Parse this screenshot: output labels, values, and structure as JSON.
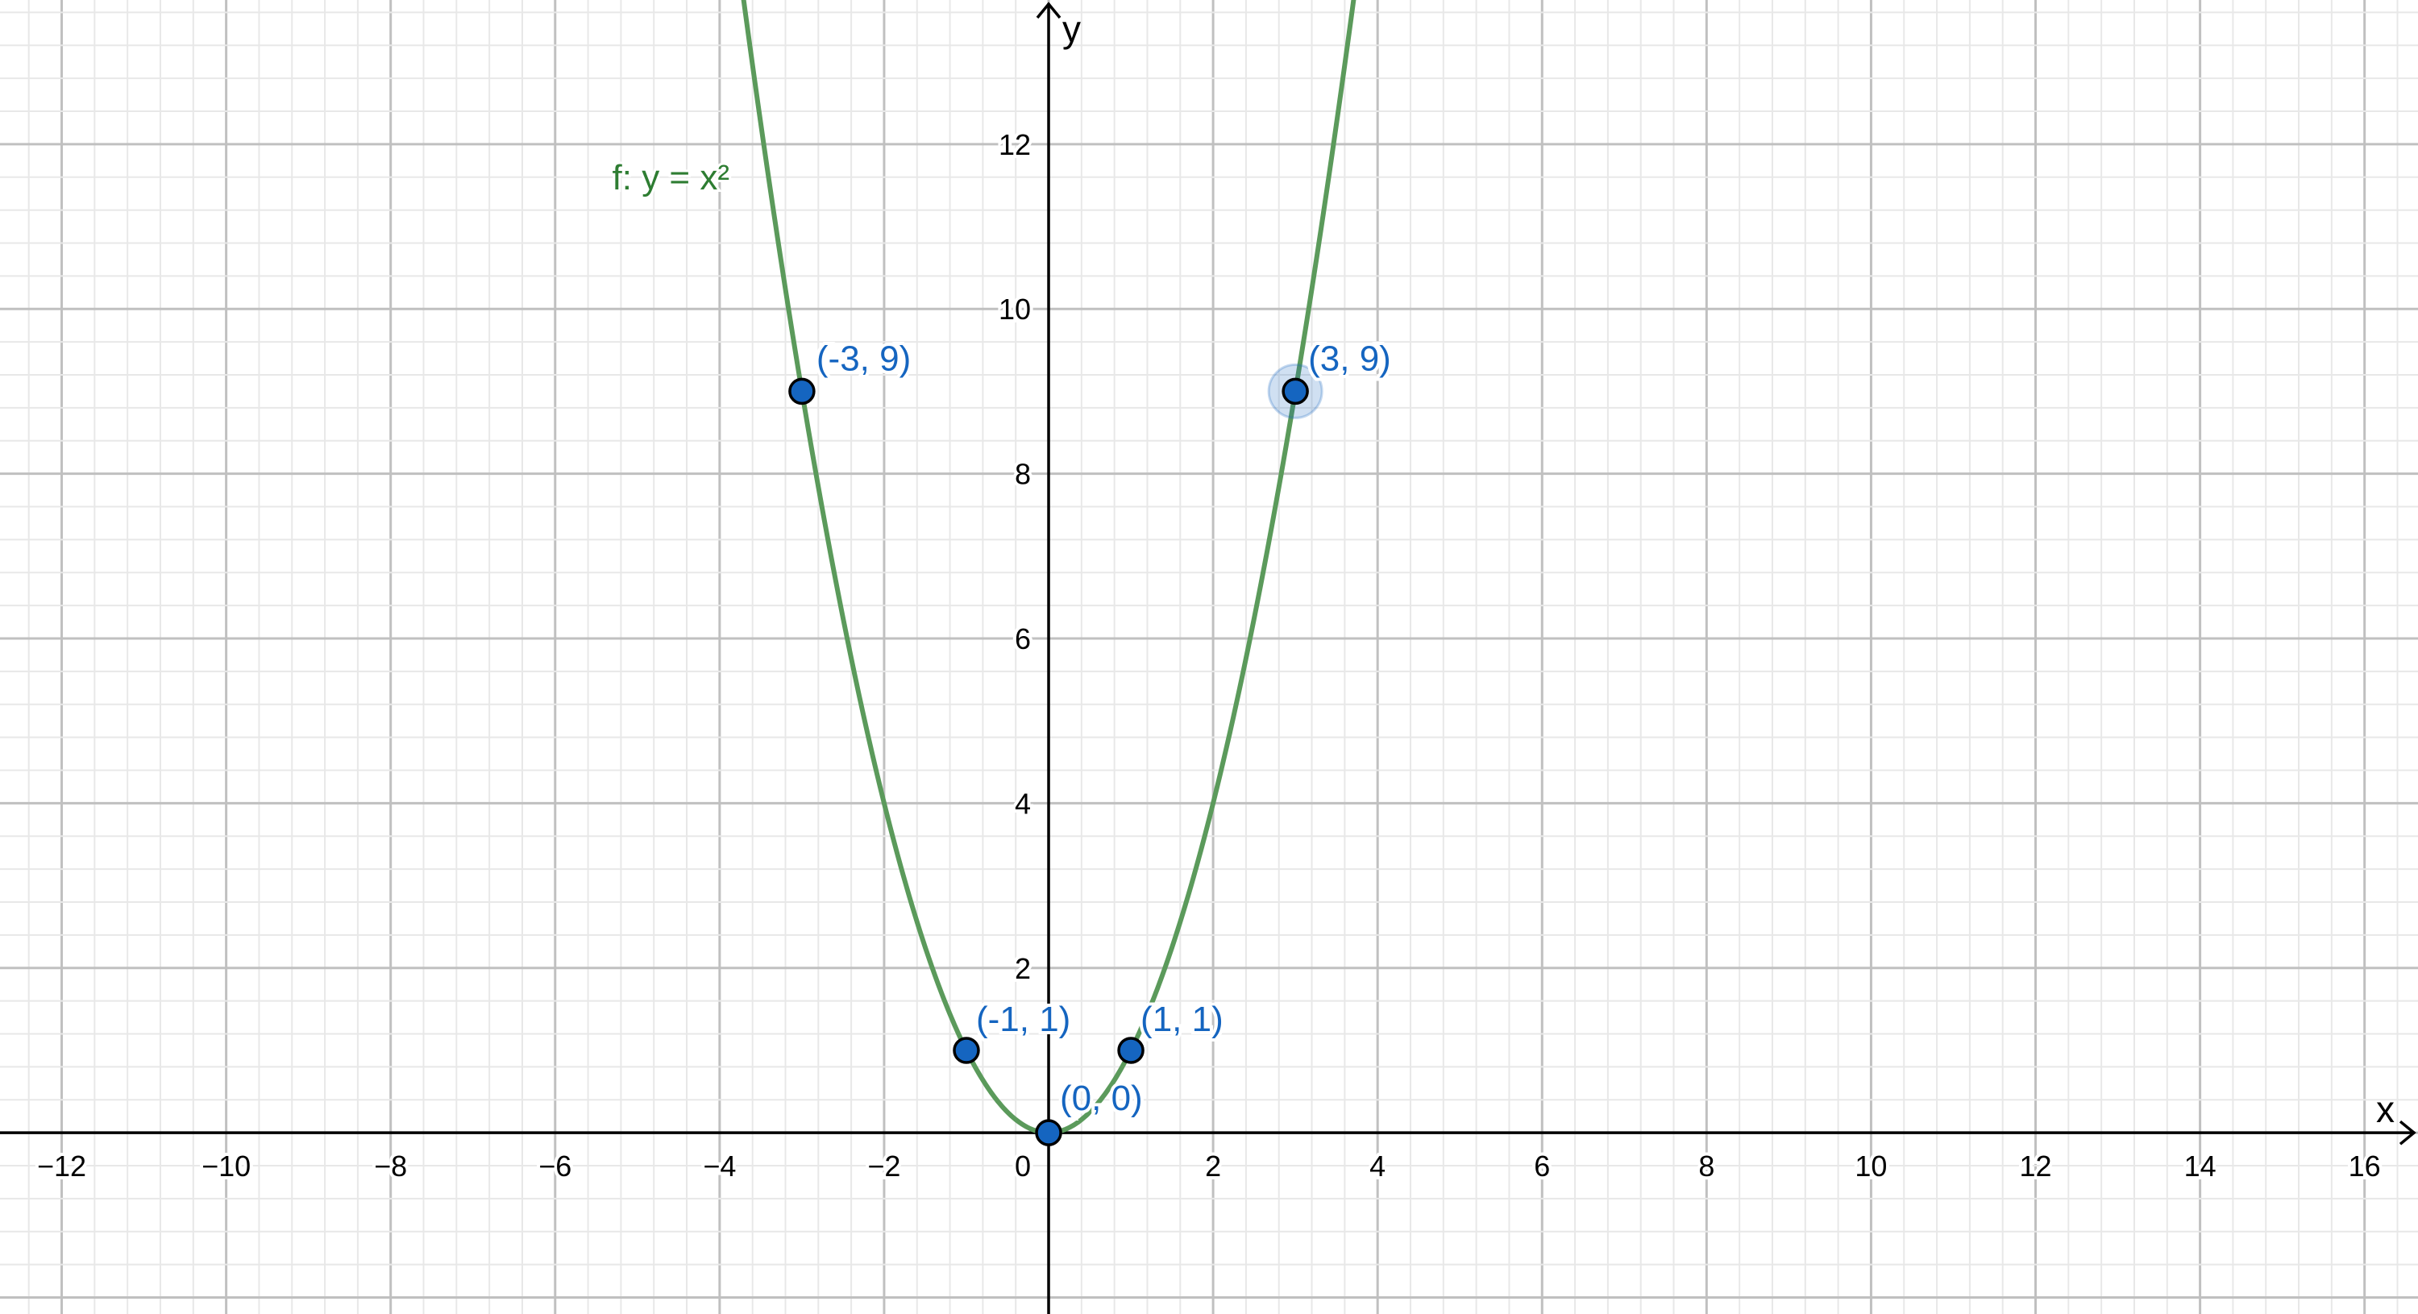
{
  "chart_data": {
    "type": "line",
    "title": "",
    "xlabel": "x",
    "ylabel": "y",
    "xlim": [
      -12.75,
      16.65
    ],
    "ylim": [
      -2.2,
      13.75
    ],
    "grid": true,
    "major_grid_step": 2,
    "minor_grid_step": 0.4,
    "x_ticks": [
      -12,
      -10,
      -8,
      -6,
      -4,
      -2,
      0,
      2,
      4,
      6,
      8,
      10,
      12,
      14,
      16
    ],
    "x_tick_labels": [
      "−12",
      "−10",
      "−8",
      "−6",
      "−4",
      "−2",
      "0",
      "2",
      "4",
      "6",
      "8",
      "10",
      "12",
      "14",
      "16"
    ],
    "y_ticks": [
      2,
      4,
      6,
      8,
      10,
      12
    ],
    "y_tick_labels": [
      "2",
      "4",
      "6",
      "8",
      "10",
      "12"
    ],
    "series": [
      {
        "name": "f",
        "label": "f: y = x²",
        "expression": "x^2",
        "color": "#5b9a5b"
      }
    ],
    "points": [
      {
        "x": -3,
        "y": 9,
        "label": "(-3, 9)",
        "selected": false
      },
      {
        "x": 3,
        "y": 9,
        "label": "(3, 9)",
        "selected": true
      },
      {
        "x": -1,
        "y": 1,
        "label": "(-1, 1)",
        "selected": false
      },
      {
        "x": 1,
        "y": 1,
        "label": "(1, 1)",
        "selected": false
      },
      {
        "x": 0,
        "y": 0,
        "label": "(0, 0)",
        "selected": false
      }
    ],
    "point_color": "#1565c0",
    "label_color": "#1565c0"
  }
}
